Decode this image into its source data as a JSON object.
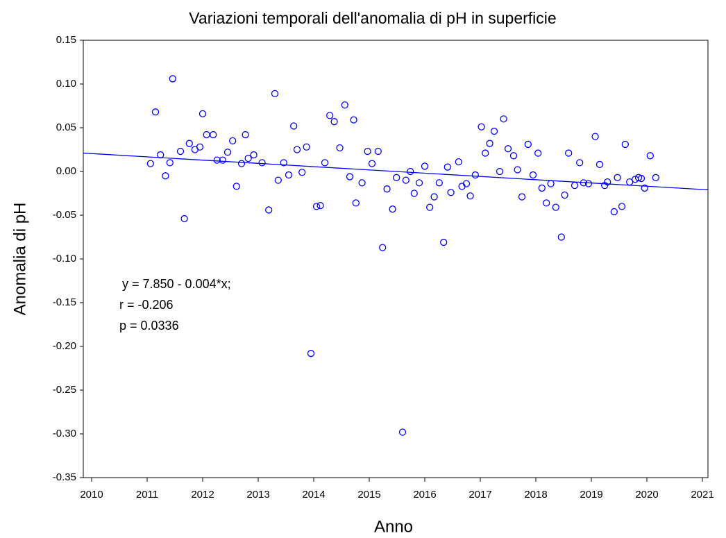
{
  "chart_data": {
    "type": "scatter",
    "title": "Variazioni temporali dell'anomalia di pH  in superficie",
    "xlabel": "Anno",
    "ylabel": "Anomalia di pH",
    "annotations": [
      "y = 7.850 - 0.004*x;",
      "r = -0.206",
      "p = 0.0336"
    ],
    "color": "#0000ff",
    "xlim": [
      2009.85,
      2021.1
    ],
    "xticks": [
      2010,
      2011,
      2012,
      2013,
      2014,
      2015,
      2016,
      2017,
      2018,
      2019,
      2020,
      2021
    ],
    "ylim": [
      -0.35,
      0.15
    ],
    "yticks": [
      0.15,
      {
        "value": 0.1,
        "label": "0.10"
      },
      0.05,
      {
        "value": 0,
        "label": "0.00"
      },
      -0.05,
      {
        "value": -0.1,
        "label": "-0.10"
      },
      -0.15,
      {
        "value": -0.2,
        "label": "-0.20"
      },
      -0.25,
      {
        "value": -0.3,
        "label": "-0.30"
      },
      -0.35
    ],
    "x": [
      2011.06,
      2011.15,
      2011.24,
      2011.33,
      2011.41,
      2011.46,
      2011.6,
      2011.67,
      2011.76,
      2011.86,
      2011.95,
      2012.0,
      2012.07,
      2012.19,
      2012.26,
      2012.36,
      2012.45,
      2012.54,
      2012.61,
      2012.7,
      2012.77,
      2012.82,
      2012.92,
      2013.07,
      2013.19,
      2013.3,
      2013.36,
      2013.46,
      2013.55,
      2013.64,
      2013.7,
      2013.79,
      2013.87,
      2013.95,
      2014.05,
      2014.12,
      2014.2,
      2014.29,
      2014.37,
      2014.47,
      2014.56,
      2014.65,
      2014.72,
      2014.76,
      2014.87,
      2014.97,
      2015.05,
      2015.16,
      2015.24,
      2015.32,
      2015.42,
      2015.49,
      2015.6,
      2015.66,
      2015.74,
      2015.81,
      2015.9,
      2016.0,
      2016.09,
      2016.17,
      2016.26,
      2016.34,
      2016.41,
      2016.47,
      2016.61,
      2016.67,
      2016.75,
      2016.82,
      2016.91,
      2017.02,
      2017.09,
      2017.17,
      2017.25,
      2017.35,
      2017.42,
      2017.5,
      2017.6,
      2017.67,
      2017.75,
      2017.86,
      2017.95,
      2018.04,
      2018.11,
      2018.19,
      2018.27,
      2018.36,
      2018.46,
      2018.52,
      2018.59,
      2018.7,
      2018.79,
      2018.86,
      2018.95,
      2019.07,
      2019.15,
      2019.24,
      2019.29,
      2019.41,
      2019.47,
      2019.55,
      2019.61,
      2019.69,
      2019.79,
      2019.85,
      2019.9,
      2019.96,
      2020.06,
      2020.16
    ],
    "values": [
      0.009,
      0.068,
      0.019,
      -0.005,
      0.01,
      0.106,
      0.023,
      -0.054,
      0.032,
      0.025,
      0.028,
      0.066,
      0.042,
      0.042,
      0.013,
      0.013,
      0.022,
      0.035,
      -0.017,
      0.009,
      0.042,
      0.015,
      0.019,
      0.01,
      -0.044,
      0.089,
      -0.01,
      0.01,
      -0.004,
      0.052,
      0.025,
      -0.001,
      0.028,
      -0.208,
      -0.04,
      -0.039,
      0.01,
      0.064,
      0.057,
      0.027,
      0.076,
      -0.006,
      0.059,
      -0.036,
      -0.013,
      0.023,
      0.009,
      0.023,
      -0.087,
      -0.02,
      -0.043,
      -0.007,
      -0.298,
      -0.01,
      0.0,
      -0.025,
      -0.013,
      0.006,
      -0.041,
      -0.029,
      -0.013,
      -0.081,
      0.005,
      -0.024,
      0.011,
      -0.017,
      -0.014,
      -0.028,
      -0.004,
      0.051,
      0.021,
      0.032,
      0.046,
      0.0,
      0.06,
      0.026,
      0.018,
      0.002,
      -0.029,
      0.031,
      -0.004,
      0.021,
      -0.019,
      -0.036,
      -0.014,
      -0.041,
      -0.075,
      -0.027,
      0.021,
      -0.016,
      0.01,
      -0.013,
      -0.014,
      0.04,
      0.008,
      -0.016,
      -0.012,
      -0.046,
      -0.007,
      -0.04,
      0.031,
      -0.012,
      -0.009,
      -0.007,
      -0.008,
      -0.019,
      0.018,
      -0.007
    ],
    "fit_line": {
      "x": [
        2009.85,
        2021.1
      ],
      "values": [
        0.021,
        -0.021
      ]
    }
  }
}
